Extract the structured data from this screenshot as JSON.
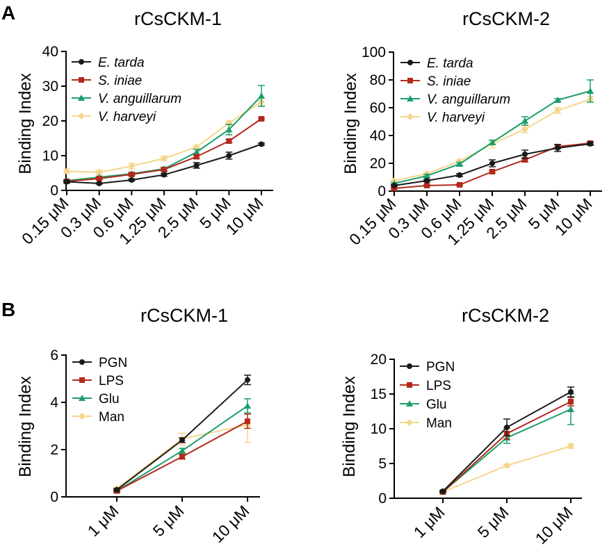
{
  "panel_labels": [
    "A",
    "B"
  ],
  "chart_data": [
    {
      "type": "line",
      "title": "rCsCKM-1",
      "xlabel": "",
      "ylabel": "Binding Index",
      "categories": [
        "0.15 μM",
        "0.3 μM",
        "0.6 μM",
        "1.25 μM",
        "2.5 μM",
        "5 μM",
        "10 μM"
      ],
      "ylim": [
        0,
        40
      ],
      "yticks": [
        0,
        10,
        20,
        30,
        40
      ],
      "legend_italic": true,
      "series": [
        {
          "name": "E. tarda",
          "color": "#1a1a1a",
          "marker": "circle",
          "values": [
            2.5,
            2.0,
            3.0,
            4.5,
            7.2,
            10.0,
            13.3
          ],
          "errors": [
            0.3,
            0.2,
            0.3,
            0.4,
            0.8,
            1.0,
            0.3
          ]
        },
        {
          "name": "S. iniae",
          "color": "#b22a1c",
          "marker": "square",
          "values": [
            2.6,
            3.4,
            4.6,
            6.0,
            9.7,
            14.2,
            20.6
          ],
          "errors": [
            0.3,
            0.3,
            0.3,
            0.4,
            0.6,
            0.5,
            0.3
          ]
        },
        {
          "name": "V. anguillarum",
          "color": "#1a9e6a",
          "marker": "triangle",
          "values": [
            2.8,
            3.8,
            4.8,
            6.2,
            11.0,
            17.5,
            27.2
          ],
          "errors": [
            0.3,
            0.3,
            0.4,
            0.5,
            0.8,
            1.5,
            3.0
          ]
        },
        {
          "name": "V. harveyi",
          "color": "#f5d68c",
          "marker": "diamond",
          "values": [
            5.5,
            5.2,
            7.0,
            9.2,
            12.5,
            19.4,
            25.5
          ],
          "errors": [
            0.6,
            0.6,
            0.8,
            0.6,
            0.5,
            0.6,
            1.0
          ]
        }
      ]
    },
    {
      "type": "line",
      "title": "rCsCKM-2",
      "xlabel": "",
      "ylabel": "Binding Index",
      "categories": [
        "0.15 μM",
        "0.3 μM",
        "0.6 μM",
        "1.25 μM",
        "2.5 μM",
        "5 μM",
        "10 μM"
      ],
      "ylim": [
        0,
        100
      ],
      "yticks": [
        0,
        20,
        40,
        60,
        80,
        100
      ],
      "legend_italic": true,
      "series": [
        {
          "name": "E. tarda",
          "color": "#1a1a1a",
          "marker": "circle",
          "values": [
            4.0,
            7.5,
            11.5,
            20.0,
            26.5,
            31.0,
            34.0
          ],
          "errors": [
            0.5,
            0.8,
            1.0,
            2.5,
            3.0,
            2.5,
            1.0
          ]
        },
        {
          "name": "S. iniae",
          "color": "#b22a1c",
          "marker": "square",
          "values": [
            2.0,
            4.0,
            4.5,
            14.0,
            22.5,
            32.0,
            34.5
          ],
          "errors": [
            0.4,
            0.5,
            0.5,
            1.0,
            1.5,
            1.5,
            1.0
          ]
        },
        {
          "name": "V. anguillarum",
          "color": "#1a9e6a",
          "marker": "triangle",
          "values": [
            5.5,
            11.0,
            19.5,
            35.0,
            50.5,
            65.5,
            72.0
          ],
          "errors": [
            0.5,
            1.0,
            1.0,
            1.5,
            3.0,
            1.0,
            8.0
          ]
        },
        {
          "name": "V. harveyi",
          "color": "#f5d68c",
          "marker": "diamond",
          "values": [
            7.5,
            12.5,
            21.5,
            34.0,
            44.5,
            58.0,
            66.0
          ],
          "errors": [
            0.5,
            1.0,
            1.0,
            3.0,
            2.5,
            2.0,
            2.0
          ]
        }
      ]
    },
    {
      "type": "line",
      "title": "rCsCKM-1",
      "xlabel": "",
      "ylabel": "Binding Index",
      "categories": [
        "1 μM",
        "5 μM",
        "10 μM"
      ],
      "ylim": [
        0,
        6
      ],
      "yticks": [
        0,
        2,
        4,
        6
      ],
      "legend_italic": false,
      "series": [
        {
          "name": "PGN",
          "color": "#1a1a1a",
          "marker": "circle",
          "values": [
            0.3,
            2.4,
            4.95
          ],
          "errors": [
            0.05,
            0.1,
            0.2
          ]
        },
        {
          "name": "LPS",
          "color": "#b22a1c",
          "marker": "square",
          "values": [
            0.25,
            1.7,
            3.2
          ],
          "errors": [
            0.05,
            0.1,
            0.3
          ]
        },
        {
          "name": "Glu",
          "color": "#1a9e6a",
          "marker": "triangle",
          "values": [
            0.25,
            1.95,
            3.85
          ],
          "errors": [
            0.05,
            0.1,
            0.3
          ]
        },
        {
          "name": "Man",
          "color": "#f5d68c",
          "marker": "diamond",
          "values": [
            0.35,
            2.45,
            3.05
          ],
          "errors": [
            0.05,
            0.25,
            0.75
          ]
        }
      ]
    },
    {
      "type": "line",
      "title": "rCsCKM-2",
      "xlabel": "",
      "ylabel": "Binding Index",
      "categories": [
        "1 μM",
        "5 μM",
        "10 μM"
      ],
      "ylim": [
        0,
        20
      ],
      "yticks": [
        0,
        5,
        10,
        15,
        20
      ],
      "legend_italic": false,
      "series": [
        {
          "name": "PGN",
          "color": "#1a1a1a",
          "marker": "circle",
          "values": [
            1.0,
            10.2,
            15.3
          ],
          "errors": [
            0.1,
            1.2,
            0.7
          ]
        },
        {
          "name": "LPS",
          "color": "#b22a1c",
          "marker": "square",
          "values": [
            0.9,
            9.3,
            13.9
          ],
          "errors": [
            0.1,
            0.8,
            0.6
          ]
        },
        {
          "name": "Glu",
          "color": "#1a9e6a",
          "marker": "triangle",
          "values": [
            0.9,
            8.7,
            12.8
          ],
          "errors": [
            0.1,
            0.8,
            2.2
          ]
        },
        {
          "name": "Man",
          "color": "#f5d68c",
          "marker": "diamond",
          "values": [
            0.9,
            4.7,
            7.5
          ],
          "errors": [
            0.1,
            0.2,
            0.3
          ]
        }
      ]
    }
  ]
}
